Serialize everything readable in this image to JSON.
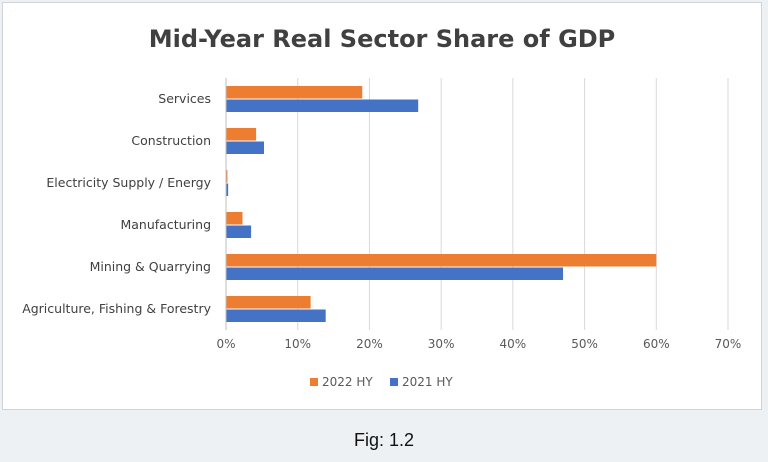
{
  "chart_data": {
    "type": "bar",
    "orientation": "horizontal",
    "title": "Mid-Year Real Sector Share of GDP",
    "categories": [
      "Services",
      "Construction",
      "Electricity Supply / Energy",
      "Manufacturing",
      "Mining & Quarrying",
      "Agriculture, Fishing & Forestry"
    ],
    "series": [
      {
        "name": "2022 HY",
        "color": "#ED7D31",
        "values": [
          19,
          4.2,
          0.2,
          2.3,
          60,
          11.8
        ]
      },
      {
        "name": "2021 HY",
        "color": "#4472C4",
        "values": [
          26.8,
          5.3,
          0.3,
          3.5,
          47,
          13.9
        ]
      }
    ],
    "xlim": [
      0,
      70
    ],
    "xticks": [
      0,
      10,
      20,
      30,
      40,
      50,
      60,
      70
    ],
    "tick_suffix": "%",
    "grid": true,
    "legend_position": "bottom"
  },
  "caption": "Fig: 1.2"
}
